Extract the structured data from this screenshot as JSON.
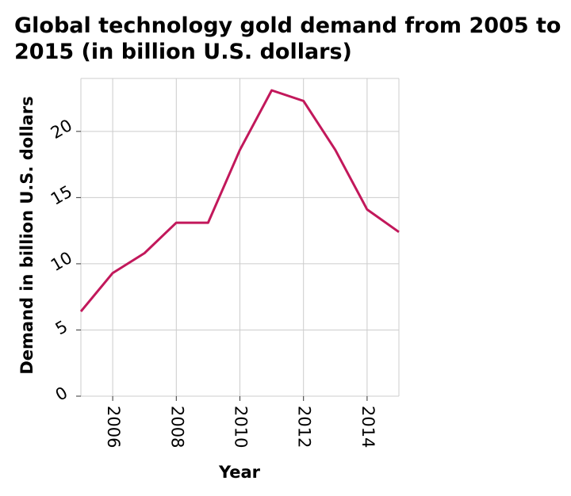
{
  "chart_data": {
    "type": "line",
    "title": "Global technology gold demand from 2005 to 2015 (in billion U.S. dollars)",
    "xlabel": "Year",
    "ylabel": "Demand in billion U.S. dollars",
    "xlim": [
      2005,
      2015
    ],
    "ylim": [
      0,
      24
    ],
    "xticks": [
      2006,
      2008,
      2010,
      2012,
      2014
    ],
    "yticks": [
      0,
      5,
      10,
      15,
      20
    ],
    "grid": true,
    "line_color": "#c2185b",
    "series": [
      {
        "x": [
          2005,
          2006,
          2007,
          2008,
          2009,
          2010,
          2011,
          2012,
          2013,
          2014,
          2015
        ],
        "values": [
          6.4,
          9.3,
          10.8,
          13.1,
          13.1,
          18.6,
          23.1,
          22.3,
          18.6,
          14.1,
          12.4
        ]
      }
    ]
  }
}
